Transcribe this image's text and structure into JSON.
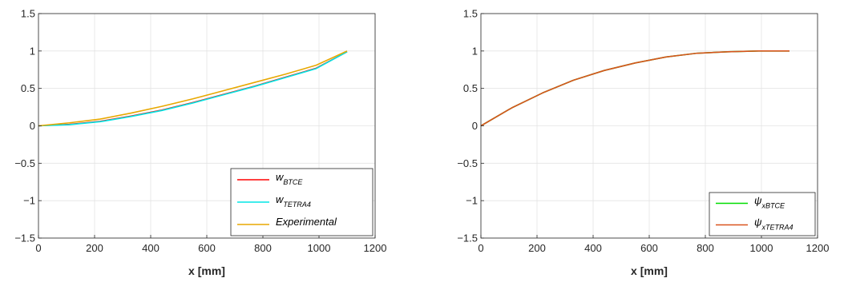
{
  "chart_data": [
    {
      "type": "line",
      "title": "",
      "xlabel": "x [mm]",
      "ylabel": "",
      "xlim": [
        0,
        1200
      ],
      "ylim": [
        -1.5,
        1.5
      ],
      "xticks": [
        0,
        200,
        400,
        600,
        800,
        1000,
        1200
      ],
      "yticks": [
        -1.5,
        -1,
        -0.5,
        0,
        0.5,
        1,
        1.5
      ],
      "xtick_labels": [
        "0",
        "200",
        "400",
        "600",
        "800",
        "1000",
        "1200"
      ],
      "ytick_labels": [
        "−1.5",
        "−1",
        "−0.5",
        "0",
        "0.5",
        "1",
        "1.5"
      ],
      "grid": true,
      "legend_position": "bottom-right",
      "series": [
        {
          "name": "w_BTCE",
          "legend_main": "w",
          "legend_sub": "BTCE",
          "color": "#ff0000",
          "x": [
            0,
            110,
            220,
            330,
            440,
            550,
            660,
            770,
            880,
            990,
            1100
          ],
          "y": [
            0,
            0.02,
            0.06,
            0.13,
            0.21,
            0.31,
            0.42,
            0.53,
            0.65,
            0.77,
            0.99
          ]
        },
        {
          "name": "w_TETRA4",
          "legend_main": "w",
          "legend_sub": "TETRA4",
          "color": "#00e5e5",
          "x": [
            0,
            110,
            220,
            330,
            440,
            550,
            660,
            770,
            880,
            990,
            1100
          ],
          "y": [
            0,
            0.015,
            0.055,
            0.125,
            0.205,
            0.305,
            0.415,
            0.525,
            0.645,
            0.765,
            0.99
          ]
        },
        {
          "name": "Experimental",
          "legend_main": "Experimental",
          "legend_sub": "",
          "color": "#e8a800",
          "x": [
            0,
            110,
            220,
            330,
            440,
            550,
            660,
            770,
            880,
            990,
            1100
          ],
          "y": [
            0,
            0.04,
            0.09,
            0.17,
            0.26,
            0.36,
            0.47,
            0.58,
            0.69,
            0.81,
            1.0
          ]
        }
      ]
    },
    {
      "type": "line",
      "title": "",
      "xlabel": "x [mm]",
      "ylabel": "",
      "xlim": [
        0,
        1200
      ],
      "ylim": [
        -1.5,
        1.5
      ],
      "xticks": [
        0,
        200,
        400,
        600,
        800,
        1000,
        1200
      ],
      "yticks": [
        -1.5,
        -1,
        -0.5,
        0,
        0.5,
        1,
        1.5
      ],
      "xtick_labels": [
        "0",
        "200",
        "400",
        "600",
        "800",
        "1000",
        "1200"
      ],
      "ytick_labels": [
        "−1.5",
        "−1",
        "−0.5",
        "0",
        "0.5",
        "1",
        "1.5"
      ],
      "grid": true,
      "legend_position": "bottom-right",
      "series": [
        {
          "name": "ψ_xBTCE",
          "legend_main": "ψ",
          "legend_sub": "xBTCE",
          "color": "#00dd00",
          "x": [
            0,
            110,
            220,
            330,
            440,
            550,
            660,
            770,
            880,
            990,
            1100
          ],
          "y": [
            0,
            0.24,
            0.44,
            0.61,
            0.74,
            0.84,
            0.92,
            0.97,
            0.99,
            1.0,
            1.0
          ]
        },
        {
          "name": "ψ_xTETRA4",
          "legend_main": "ψ",
          "legend_sub": "xTETRA4",
          "color": "#d9531e",
          "x": [
            0,
            110,
            220,
            330,
            440,
            550,
            660,
            770,
            880,
            990,
            1100
          ],
          "y": [
            0,
            0.24,
            0.44,
            0.61,
            0.74,
            0.84,
            0.92,
            0.97,
            0.99,
            1.0,
            1.0
          ]
        }
      ]
    }
  ]
}
